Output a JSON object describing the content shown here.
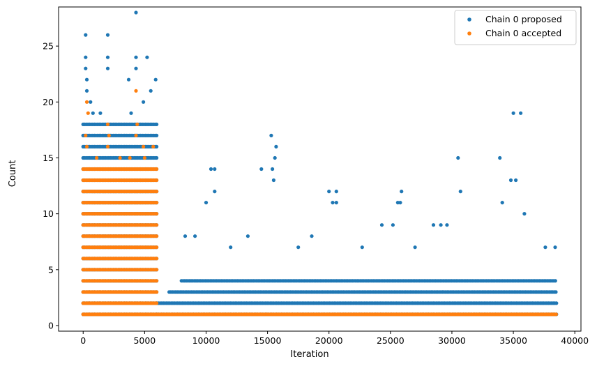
{
  "chart_data": {
    "type": "scatter",
    "xlabel": "Iteration",
    "ylabel": "Count",
    "xlim": [
      -2000,
      40500
    ],
    "ylim": [
      -0.5,
      28.5
    ],
    "x_ticks": [
      0,
      5000,
      10000,
      15000,
      20000,
      25000,
      30000,
      35000,
      40000
    ],
    "y_ticks": [
      0,
      5,
      10,
      15,
      20,
      25
    ],
    "legend": {
      "placement": "top-right",
      "entries": [
        "Chain 0 proposed",
        "Chain 0 accepted"
      ]
    },
    "grid": false,
    "series": [
      {
        "name": "Chain 0 proposed",
        "color": "#1f77b4",
        "note_values": "dense integer-valued markers; bands listed as [x_start, x_end, y]",
        "bands": [
          [
            0,
            6000,
            1
          ],
          [
            0,
            6000,
            2
          ],
          [
            0,
            6000,
            3
          ],
          [
            0,
            6000,
            4
          ],
          [
            0,
            6000,
            5
          ],
          [
            0,
            6000,
            6
          ],
          [
            0,
            6000,
            7
          ],
          [
            0,
            6000,
            8
          ],
          [
            0,
            6000,
            9
          ],
          [
            0,
            6000,
            10
          ],
          [
            0,
            6000,
            11
          ],
          [
            0,
            6000,
            12
          ],
          [
            0,
            6000,
            13
          ],
          [
            0,
            6000,
            14
          ],
          [
            0,
            6000,
            15
          ],
          [
            0,
            6000,
            16
          ],
          [
            0,
            6000,
            17
          ],
          [
            0,
            6000,
            18
          ],
          [
            6000,
            38500,
            1
          ],
          [
            6000,
            38500,
            2
          ],
          [
            7000,
            38500,
            3
          ],
          [
            8000,
            38500,
            4
          ]
        ],
        "points": [
          [
            200,
            26
          ],
          [
            200,
            24
          ],
          [
            200,
            23
          ],
          [
            300,
            22
          ],
          [
            300,
            21
          ],
          [
            600,
            20
          ],
          [
            800,
            19
          ],
          [
            2000,
            26
          ],
          [
            2000,
            24
          ],
          [
            2000,
            23
          ],
          [
            3700,
            22
          ],
          [
            4300,
            28
          ],
          [
            4300,
            24
          ],
          [
            4300,
            23
          ],
          [
            5200,
            24
          ],
          [
            5900,
            22
          ],
          [
            5500,
            21
          ],
          [
            4900,
            20
          ],
          [
            3900,
            19
          ],
          [
            1400,
            19
          ],
          [
            10400,
            14
          ],
          [
            10700,
            14
          ],
          [
            10700,
            12
          ],
          [
            10000,
            11
          ],
          [
            15300,
            17
          ],
          [
            15700,
            16
          ],
          [
            14500,
            14
          ],
          [
            15400,
            14
          ],
          [
            15600,
            15
          ],
          [
            15500,
            13
          ],
          [
            20000,
            12
          ],
          [
            20600,
            12
          ],
          [
            20300,
            11
          ],
          [
            20600,
            11
          ],
          [
            25900,
            12
          ],
          [
            25800,
            11
          ],
          [
            25600,
            11
          ],
          [
            30500,
            15
          ],
          [
            30700,
            12
          ],
          [
            33900,
            15
          ],
          [
            35000,
            19
          ],
          [
            35600,
            19
          ],
          [
            35200,
            13
          ],
          [
            34800,
            13
          ],
          [
            37600,
            7
          ],
          [
            38400,
            7
          ],
          [
            27000,
            7
          ],
          [
            22700,
            7
          ],
          [
            17500,
            7
          ],
          [
            12000,
            7
          ],
          [
            8300,
            8
          ],
          [
            9100,
            8
          ],
          [
            13400,
            8
          ],
          [
            18600,
            8
          ],
          [
            24300,
            9
          ],
          [
            25200,
            9
          ],
          [
            28500,
            9
          ],
          [
            29100,
            9
          ],
          [
            29600,
            9
          ],
          [
            34100,
            11
          ],
          [
            35900,
            10
          ]
        ]
      },
      {
        "name": "Chain 0 accepted",
        "color": "#ff7f0e",
        "note_values": "dense integer-valued markers; bands listed as [x_start, x_end, y]",
        "bands": [
          [
            0,
            38500,
            1
          ],
          [
            0,
            6000,
            2
          ],
          [
            0,
            6000,
            3
          ],
          [
            0,
            6000,
            4
          ],
          [
            0,
            6000,
            5
          ],
          [
            0,
            6000,
            6
          ],
          [
            0,
            6000,
            7
          ],
          [
            0,
            6000,
            8
          ],
          [
            0,
            6000,
            9
          ],
          [
            0,
            6000,
            10
          ],
          [
            0,
            6000,
            11
          ],
          [
            0,
            6000,
            12
          ],
          [
            0,
            6000,
            13
          ],
          [
            0,
            6000,
            14
          ]
        ],
        "points": [
          [
            300,
            20
          ],
          [
            400,
            19
          ],
          [
            200,
            17
          ],
          [
            300,
            16
          ],
          [
            2000,
            18
          ],
          [
            2100,
            17
          ],
          [
            2000,
            16
          ],
          [
            4300,
            21
          ],
          [
            4400,
            18
          ],
          [
            4300,
            17
          ],
          [
            4900,
            16
          ],
          [
            3800,
            15
          ],
          [
            1100,
            15
          ],
          [
            5700,
            16
          ],
          [
            3000,
            15
          ],
          [
            5000,
            15
          ]
        ]
      }
    ]
  }
}
